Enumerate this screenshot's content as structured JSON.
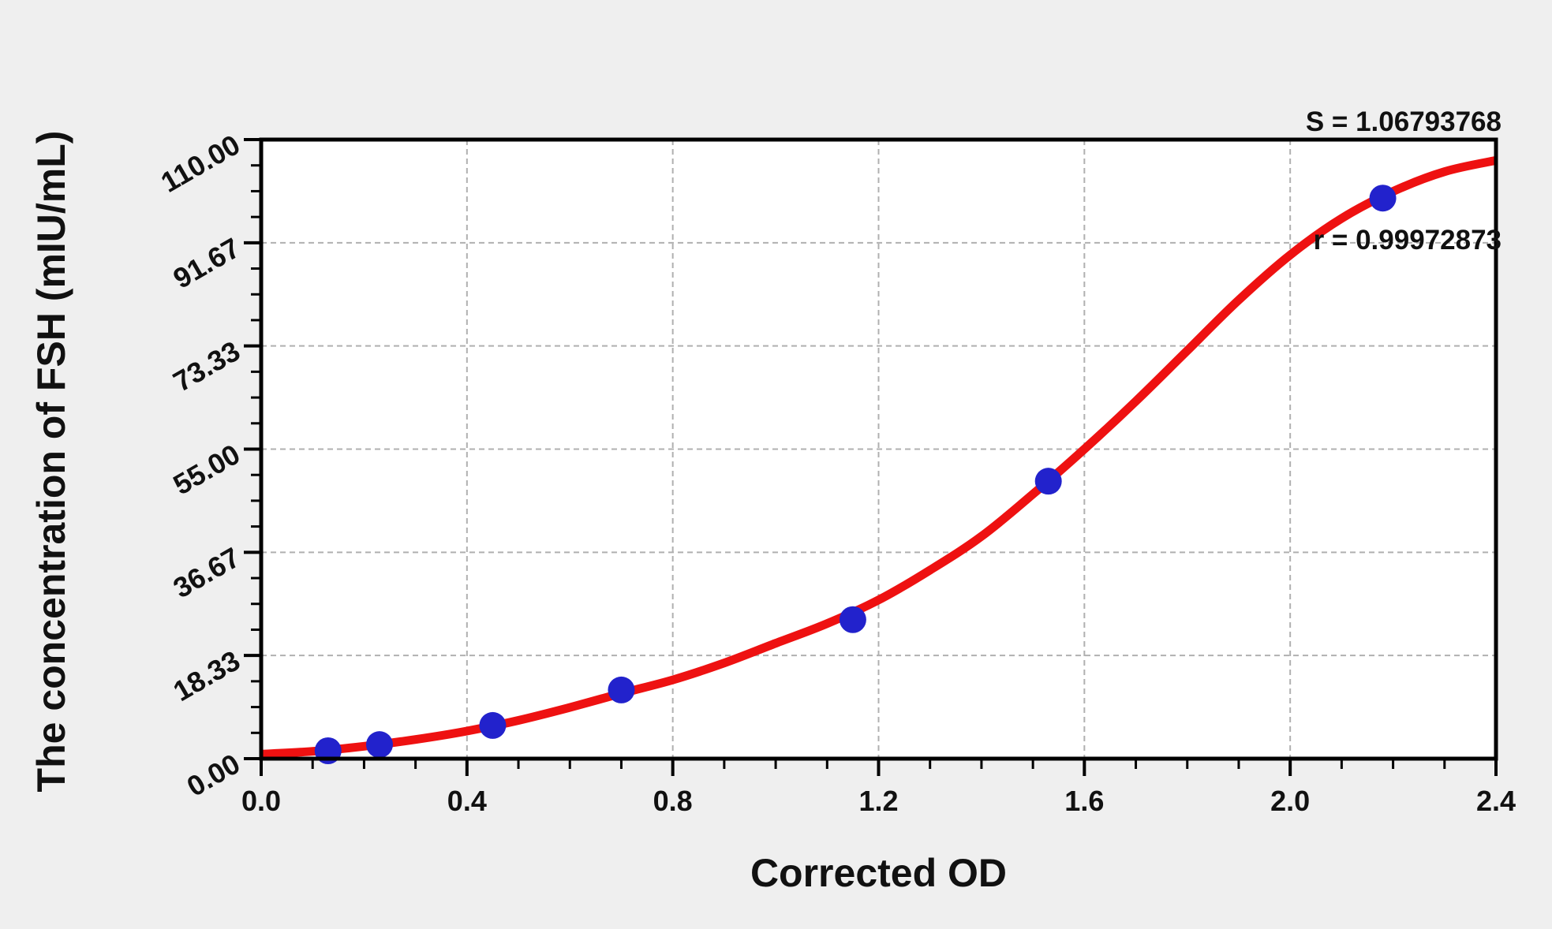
{
  "annotation": {
    "s_line": "S = 1.06793768",
    "r_line": "r = 0.99972873"
  },
  "chart_data": {
    "type": "line",
    "title": "",
    "xlabel": "Corrected OD",
    "ylabel": "The concentration of FSH (mIU/mL)",
    "xlim": [
      0,
      2.4
    ],
    "ylim": [
      0,
      110
    ],
    "grid": "dashed-major",
    "legend": "none",
    "stats": {
      "S": "1.06793768",
      "r": "0.99972873"
    },
    "x_ticks": [
      {
        "v": 0.0,
        "label": "0.0"
      },
      {
        "v": 0.4,
        "label": "0.4"
      },
      {
        "v": 0.8,
        "label": "0.8"
      },
      {
        "v": 1.2,
        "label": "1.2"
      },
      {
        "v": 1.6,
        "label": "1.6"
      },
      {
        "v": 2.0,
        "label": "2.0"
      },
      {
        "v": 2.4,
        "label": "2.4"
      }
    ],
    "y_ticks": [
      {
        "v": 0,
        "label": "0.00"
      },
      {
        "v": 18.333,
        "label": "18.33"
      },
      {
        "v": 36.667,
        "label": "36.67"
      },
      {
        "v": 55,
        "label": "55.00"
      },
      {
        "v": 73.333,
        "label": "73.33"
      },
      {
        "v": 91.667,
        "label": "91.67"
      },
      {
        "v": 110,
        "label": "110.00"
      }
    ],
    "x_minor_step": 0.1,
    "y_minor_divisions": 4,
    "points": [
      {
        "x": 0.13,
        "y": 1.4
      },
      {
        "x": 0.23,
        "y": 2.5
      },
      {
        "x": 0.45,
        "y": 5.9
      },
      {
        "x": 0.7,
        "y": 12.2
      },
      {
        "x": 1.15,
        "y": 24.7
      },
      {
        "x": 1.53,
        "y": 49.3
      },
      {
        "x": 2.18,
        "y": 99.6
      }
    ],
    "curve": {
      "x": [
        0.0,
        0.1,
        0.2,
        0.3,
        0.4,
        0.5,
        0.6,
        0.7,
        0.8,
        0.9,
        1.0,
        1.1,
        1.2,
        1.3,
        1.4,
        1.5,
        1.6,
        1.7,
        1.8,
        1.9,
        2.0,
        2.1,
        2.2,
        2.3,
        2.4
      ],
      "y": [
        0.8,
        1.3,
        2.2,
        3.4,
        4.9,
        6.8,
        9.1,
        11.6,
        14.0,
        17.0,
        20.5,
        24.0,
        28.2,
        33.5,
        39.5,
        47.0,
        55.0,
        63.5,
        72.5,
        81.5,
        89.5,
        96.0,
        100.8,
        104.3,
        106.3
      ]
    },
    "colors": {
      "curve": "#ee1111",
      "points": "#2222cc",
      "grid": "#b0b0b0",
      "axis": "#000000",
      "plot_background": "#ffffff",
      "page_background": "#efefef"
    }
  }
}
